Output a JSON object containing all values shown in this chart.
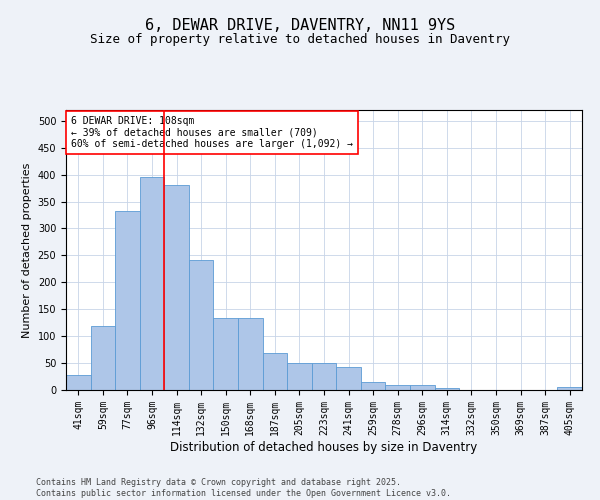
{
  "title": "6, DEWAR DRIVE, DAVENTRY, NN11 9YS",
  "subtitle": "Size of property relative to detached houses in Daventry",
  "xlabel": "Distribution of detached houses by size in Daventry",
  "ylabel": "Number of detached properties",
  "categories": [
    "41sqm",
    "59sqm",
    "77sqm",
    "96sqm",
    "114sqm",
    "132sqm",
    "150sqm",
    "168sqm",
    "187sqm",
    "205sqm",
    "223sqm",
    "241sqm",
    "259sqm",
    "278sqm",
    "296sqm",
    "314sqm",
    "332sqm",
    "350sqm",
    "369sqm",
    "387sqm",
    "405sqm"
  ],
  "values": [
    28,
    118,
    332,
    395,
    380,
    242,
    133,
    133,
    68,
    50,
    50,
    42,
    15,
    10,
    10,
    4,
    0,
    0,
    0,
    0,
    6
  ],
  "bar_color": "#aec6e8",
  "bar_edge_color": "#5b9bd5",
  "vline_x": 3.5,
  "vline_color": "red",
  "annotation_text": "6 DEWAR DRIVE: 108sqm\n← 39% of detached houses are smaller (709)\n60% of semi-detached houses are larger (1,092) →",
  "annotation_box_color": "white",
  "annotation_box_edge_color": "red",
  "ylim": [
    0,
    520
  ],
  "yticks": [
    0,
    50,
    100,
    150,
    200,
    250,
    300,
    350,
    400,
    450,
    500
  ],
  "footer_text": "Contains HM Land Registry data © Crown copyright and database right 2025.\nContains public sector information licensed under the Open Government Licence v3.0.",
  "title_fontsize": 11,
  "subtitle_fontsize": 9,
  "xlabel_fontsize": 8.5,
  "ylabel_fontsize": 8,
  "tick_fontsize": 7,
  "annotation_fontsize": 7,
  "footer_fontsize": 6,
  "bg_color": "#eef2f8",
  "plot_bg_color": "white",
  "grid_color": "#c8d4e8"
}
